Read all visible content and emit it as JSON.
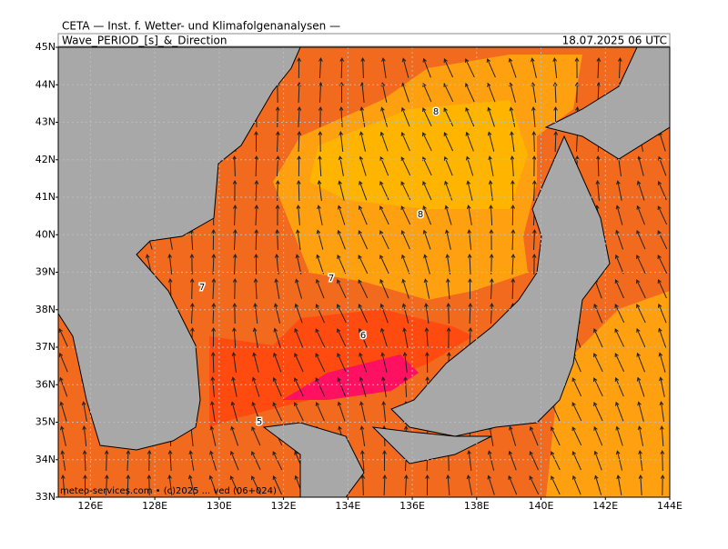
{
  "header": {
    "institute": "CETA — Inst. f. Wetter- und Klimafolgenanalysen —",
    "title": "Wave_PERIOD_[s]_&_Direction",
    "valid_time": "18.07.2025 06 UTC"
  },
  "map": {
    "xlim": [
      125,
      144
    ],
    "ylim": [
      33,
      45
    ],
    "lat_ticks": [
      {
        "value": 33,
        "label": "33N"
      },
      {
        "value": 34,
        "label": "34N"
      },
      {
        "value": 35,
        "label": "35N"
      },
      {
        "value": 36,
        "label": "36N"
      },
      {
        "value": 37,
        "label": "37N"
      },
      {
        "value": 38,
        "label": "38N"
      },
      {
        "value": 39,
        "label": "39N"
      },
      {
        "value": 40,
        "label": "40N"
      },
      {
        "value": 41,
        "label": "41N"
      },
      {
        "value": 42,
        "label": "42N"
      },
      {
        "value": 43,
        "label": "43N"
      },
      {
        "value": 44,
        "label": "44N"
      },
      {
        "value": 45,
        "label": "45N"
      }
    ],
    "lon_ticks": [
      {
        "value": 126,
        "label": "126E"
      },
      {
        "value": 128,
        "label": "128E"
      },
      {
        "value": 130,
        "label": "130E"
      },
      {
        "value": 132,
        "label": "132E"
      },
      {
        "value": 134,
        "label": "134E"
      },
      {
        "value": 136,
        "label": "136E"
      },
      {
        "value": 138,
        "label": "138E"
      },
      {
        "value": 140,
        "label": "140E"
      },
      {
        "value": 142,
        "label": "142E"
      },
      {
        "value": 144,
        "label": "144E"
      }
    ],
    "contour_labels": [
      "8",
      "8",
      "7",
      "7",
      "6",
      "5"
    ],
    "footer": "meteo-services.com • (c)2025 ... ved (06+024)"
  }
}
